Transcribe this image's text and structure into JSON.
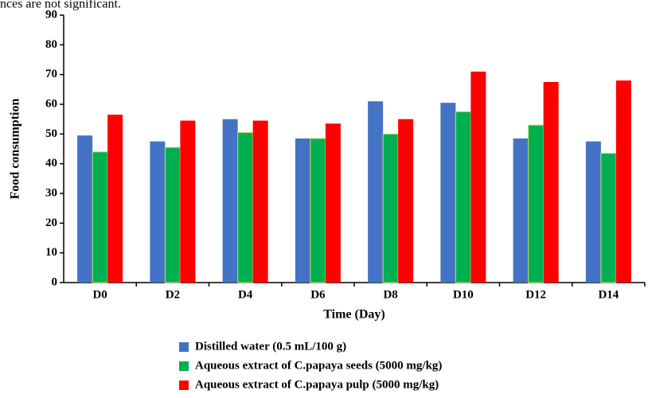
{
  "chart_data": {
    "type": "bar",
    "annotation": "nces are not significant.",
    "categories": [
      "D0",
      "D2",
      "D4",
      "D6",
      "D8",
      "D10",
      "D12",
      "D14"
    ],
    "series": [
      {
        "name": "Distilled water (0.5 mL/100 g)",
        "color": "#4472c4",
        "values": [
          49.5,
          47.5,
          55,
          48.5,
          61,
          60.5,
          48.5,
          47.5
        ]
      },
      {
        "name": "Aqueous extract of C.papaya seeds (5000 mg/kg)",
        "color": "#00b050",
        "values": [
          44,
          45.5,
          50.5,
          48.5,
          50,
          57.5,
          53,
          43.5
        ]
      },
      {
        "name": "Aqueous extract of C.papaya pulp (5000 mg/kg)",
        "color": "#ff0000",
        "values": [
          56.5,
          54.5,
          54.5,
          53.5,
          55,
          71,
          67.5,
          68
        ]
      }
    ],
    "xlabel": "Time (Day)",
    "ylabel": "Food consumption",
    "ylim": [
      0,
      90
    ],
    "yticks": [
      0,
      10,
      20,
      30,
      40,
      50,
      60,
      70,
      80,
      90
    ],
    "grid": false
  }
}
